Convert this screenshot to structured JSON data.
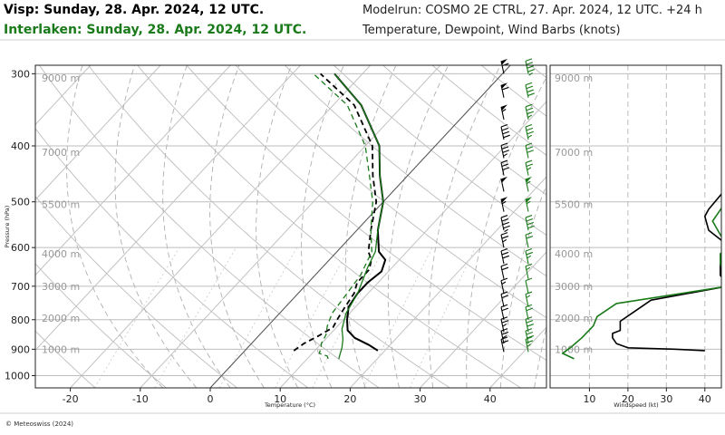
{
  "header": {
    "title_location1": "Visp: Sunday, 28. Apr. 2024, 12 UTC.",
    "title_location2": "Interlaken: Sunday, 28. Apr. 2024, 12 UTC.",
    "model_run": "Modelrun: COSMO 2E CTRL, 27. Apr. 2024, 12 UTC. +24 h",
    "subtitle": "Temperature, Dewpoint, Wind Barbs (knots)"
  },
  "footer": {
    "copyright": "© Meteoswiss (2024)"
  },
  "colors": {
    "location1": "#000000",
    "location2": "#1a7a1a"
  },
  "chart_data": [
    {
      "type": "line",
      "name": "skew-t",
      "xlabel": "Temperature (°C)",
      "ylabel": "Pressure (hPa)",
      "xlim": [
        -25,
        45
      ],
      "ylim": [
        1050,
        290
      ],
      "yscale": "log",
      "xticks": [
        -20,
        -10,
        0,
        10,
        20,
        30,
        40
      ],
      "yticks": [
        300,
        400,
        500,
        600,
        700,
        800,
        900,
        1000
      ],
      "altitude_labels": [
        {
          "label": "1000 m",
          "p": 900
        },
        {
          "label": "2000 m",
          "p": 795
        },
        {
          "label": "3000 m",
          "p": 700
        },
        {
          "label": "4000 m",
          "p": 615
        },
        {
          "label": "5500 m",
          "p": 505
        },
        {
          "label": "7000 m",
          "p": 410
        },
        {
          "label": "9000 m",
          "p": 305
        }
      ],
      "series": [
        {
          "name": "Visp temperature",
          "color": "#000000",
          "dash": "solid",
          "width": 2,
          "x": [
            19,
            17,
            14,
            12,
            10.5,
            9,
            8.5,
            8.5,
            9,
            8,
            6,
            3,
            0,
            -4,
            -8,
            -16,
            -24
          ],
          "y": [
            905,
            885,
            860,
            835,
            800,
            760,
            720,
            690,
            660,
            630,
            610,
            560,
            500,
            450,
            400,
            340,
            300
          ]
        },
        {
          "name": "Visp dewpoint",
          "color": "#000000",
          "dash": "dashed",
          "width": 1.8,
          "x": [
            7,
            7.5,
            8.5,
            9.5,
            9,
            8.5,
            8,
            7,
            7,
            6,
            4.5,
            2,
            -1,
            -5,
            -9,
            -17,
            -26
          ],
          "y": [
            905,
            880,
            855,
            825,
            795,
            760,
            720,
            690,
            655,
            630,
            610,
            560,
            500,
            450,
            400,
            340,
            300
          ]
        },
        {
          "name": "Interlaken temperature",
          "color": "#1a7a1a",
          "dash": "solid",
          "width": 1.3,
          "x": [
            14.5,
            14,
            13.5,
            12.5,
            11,
            9.5,
            8.5,
            6.5,
            5.5,
            3,
            0,
            -4,
            -8,
            -16,
            -24
          ],
          "y": [
            935,
            915,
            895,
            865,
            830,
            780,
            720,
            650,
            610,
            560,
            500,
            450,
            400,
            340,
            300
          ]
        },
        {
          "name": "Interlaken dewpoint",
          "color": "#1a7a1a",
          "dash": "dashed",
          "width": 1.3,
          "x": [
            13,
            12.5,
            11,
            10.5,
            10,
            9.5,
            8.5,
            7.5,
            7,
            6.5,
            5,
            2,
            -1.5,
            -5.5,
            -10,
            -18,
            -27
          ],
          "y": [
            935,
            925,
            915,
            895,
            880,
            850,
            820,
            780,
            720,
            670,
            610,
            560,
            500,
            450,
            400,
            340,
            300
          ]
        }
      ],
      "wind_barbs": [
        {
          "p": 300,
          "speeds": [
            60,
            45
          ]
        },
        {
          "p": 330,
          "speeds": [
            60,
            40
          ]
        },
        {
          "p": 360,
          "speeds": [
            55,
            35
          ]
        },
        {
          "p": 390,
          "speeds": [
            40,
            35
          ]
        },
        {
          "p": 420,
          "speeds": [
            35,
            30
          ]
        },
        {
          "p": 450,
          "speeds": [
            30,
            25
          ]
        },
        {
          "p": 480,
          "speeds": [
            50,
            55
          ]
        },
        {
          "p": 520,
          "speeds": [
            55,
            55
          ]
        },
        {
          "p": 560,
          "speeds": [
            45,
            40
          ]
        },
        {
          "p": 600,
          "speeds": [
            25,
            20
          ]
        },
        {
          "p": 640,
          "speeds": [
            30,
            25
          ]
        },
        {
          "p": 680,
          "speeds": [
            20,
            15
          ]
        },
        {
          "p": 720,
          "speeds": [
            15,
            10
          ]
        },
        {
          "p": 760,
          "speeds": [
            20,
            15
          ]
        },
        {
          "p": 800,
          "speeds": [
            20,
            20
          ]
        },
        {
          "p": 840,
          "speeds": [
            25,
            30
          ]
        },
        {
          "p": 880,
          "speeds": [
            25,
            30
          ]
        },
        {
          "p": 910,
          "speeds": [
            20,
            25
          ]
        }
      ]
    },
    {
      "type": "line",
      "name": "windspeed-profile",
      "xlabel": "Windspeed (kt)",
      "xlim": [
        0,
        45
      ],
      "ylim": [
        1050,
        290
      ],
      "yscale": "log",
      "xticks": [
        10,
        20,
        30,
        40
      ],
      "altitude_labels": [
        {
          "label": "1000 m",
          "p": 900
        },
        {
          "label": "2000 m",
          "p": 795
        },
        {
          "label": "3000 m",
          "p": 700
        },
        {
          "label": "4000 m",
          "p": 615
        },
        {
          "label": "5500 m",
          "p": 505
        },
        {
          "label": "7000 m",
          "p": 410
        },
        {
          "label": "9000 m",
          "p": 305
        }
      ],
      "series": [
        {
          "name": "Visp windspeed",
          "color": "#000000",
          "dash": "solid",
          "width": 1.6,
          "x": [
            40,
            32,
            20,
            17,
            16,
            16,
            18,
            18,
            21,
            26,
            46,
            44,
            44,
            46,
            41,
            40,
            41,
            46
          ],
          "y": [
            905,
            900,
            895,
            880,
            860,
            845,
            835,
            805,
            780,
            740,
            700,
            670,
            630,
            595,
            560,
            530,
            515,
            470
          ]
        },
        {
          "name": "Interlaken windspeed",
          "color": "#1a7a1a",
          "dash": "solid",
          "width": 1.6,
          "x": [
            6,
            3,
            5,
            8,
            11,
            12,
            17,
            46,
            45,
            44,
            44,
            46,
            44,
            42,
            45,
            46
          ],
          "y": [
            935,
            915,
            895,
            860,
            820,
            790,
            750,
            700,
            670,
            640,
            615,
            600,
            570,
            540,
            505,
            480
          ]
        }
      ]
    }
  ]
}
